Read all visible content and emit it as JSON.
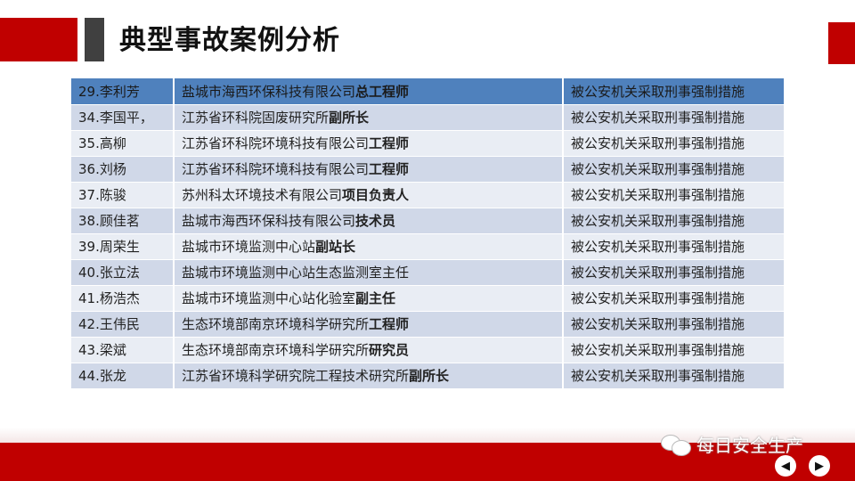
{
  "title": "典型事故案例分析",
  "rows": [
    {
      "name": "29.李利芳",
      "org": "盐城市海西环保科技有限公司",
      "role": "总工程师",
      "status": "被公安机关采取刑事强制措施"
    },
    {
      "name": "34.李国平，",
      "org": "江苏省环科院固废研究所",
      "role": "副所长",
      "status": "被公安机关采取刑事强制措施"
    },
    {
      "name": "35.高柳",
      "org": "江苏省环科院环境科技有限公司",
      "role": "工程师",
      "status": "被公安机关采取刑事强制措施"
    },
    {
      "name": "36.刘杨",
      "org": "江苏省环科院环境科技有限公司",
      "role": "工程师",
      "status": "被公安机关采取刑事强制措施"
    },
    {
      "name": "37.陈骏",
      "org": "苏州科太环境技术有限公司",
      "role": "项目负责人",
      "status": "被公安机关采取刑事强制措施"
    },
    {
      "name": "38.顾佳茗",
      "org": "盐城市海西环保科技有限公司",
      "role": "技术员",
      "status": "被公安机关采取刑事强制措施"
    },
    {
      "name": "39.周荣生",
      "org": "盐城市环境监测中心站",
      "role": "副站长",
      "status": "被公安机关采取刑事强制措施"
    },
    {
      "name": "40.张立法",
      "org": "盐城市环境监测中心站生态监测室主任",
      "role": "",
      "status": "被公安机关采取刑事强制措施"
    },
    {
      "name": "41.杨浩杰",
      "org": "盐城市环境监测中心站化验室",
      "role": "副主任",
      "status": "被公安机关采取刑事强制措施"
    },
    {
      "name": "42.王伟民",
      "org": "生态环境部南京环境科学研究所",
      "role": "工程师",
      "status": "被公安机关采取刑事强制措施"
    },
    {
      "name": "43.梁斌",
      "org": "生态环境部南京环境科学研究所",
      "role": "研究员",
      "status": "被公安机关采取刑事强制措施"
    },
    {
      "name": "44.张龙",
      "org": "江苏省环境科学研究院工程技术研究所",
      "role": "副所长",
      "status": "被公安机关采取刑事强制措施"
    }
  ],
  "watermark": "每日安全生产",
  "colors": {
    "accent_red": "#c00000",
    "header_blue": "#4f81bd",
    "row_dark": "#d0d8e8",
    "row_light": "#e9edf4"
  },
  "icons": {
    "brand": "wechat-icon",
    "prev": "arrow-left-icon",
    "next": "arrow-right-icon"
  }
}
